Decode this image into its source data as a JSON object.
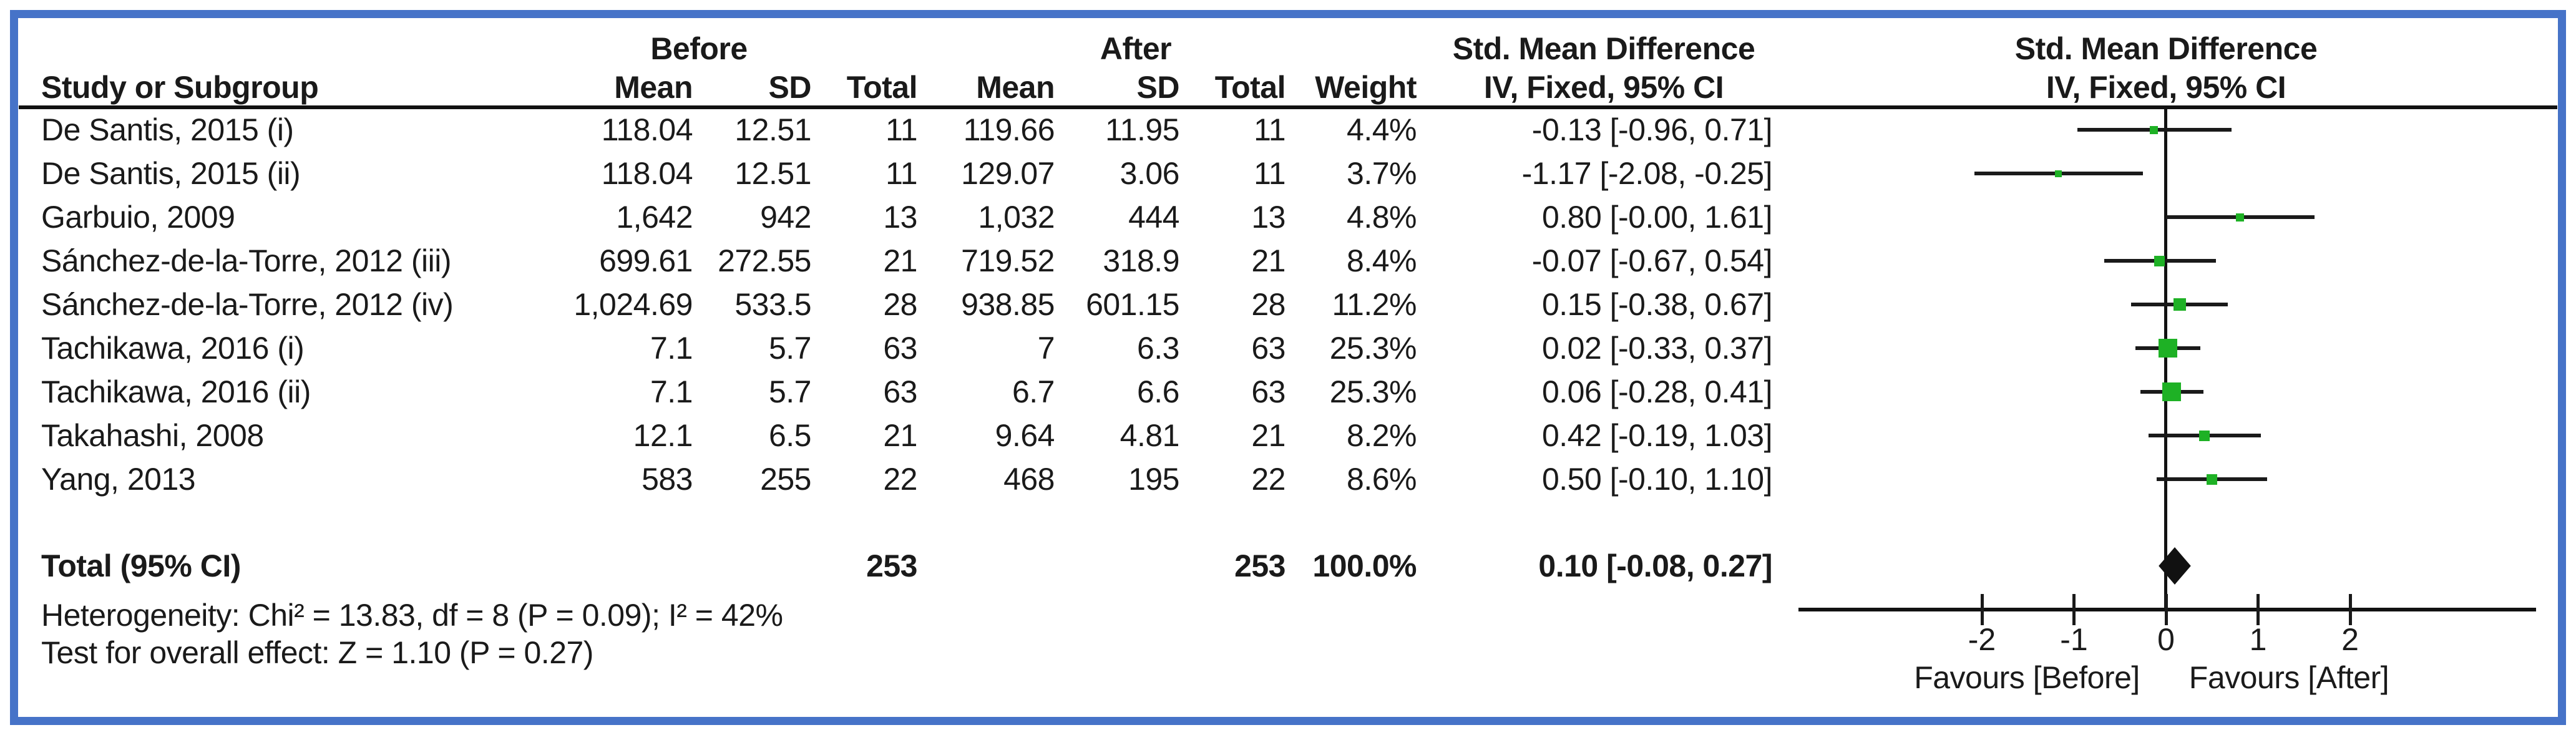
{
  "window": {
    "border_color": "#4673C8",
    "background": "#ffffff"
  },
  "header": {
    "group_before": "Before",
    "group_after": "After",
    "study_col": "Study or Subgroup",
    "col_mean": "Mean",
    "col_sd": "SD",
    "col_total": "Total",
    "col_weight": "Weight",
    "smd_line1": "Std. Mean Difference",
    "smd_line2": "IV, Fixed, 95% CI"
  },
  "chart_data": {
    "type": "forest",
    "effect_measure": "Std. Mean Difference",
    "model": "IV, Fixed, 95% CI",
    "marker_color": "#1EB125",
    "studies": [
      {
        "name": "De Santis, 2015 (i)",
        "mean1": "118.04",
        "sd1": "12.51",
        "n1": "11",
        "mean2": "119.66",
        "sd2": "11.95",
        "n2": "11",
        "weight": "4.4%",
        "weight_value": 4.4,
        "ci_text": "-0.13 [-0.96, 0.71]",
        "est": -0.13,
        "lo": -0.96,
        "hi": 0.71
      },
      {
        "name": "De Santis, 2015 (ii)",
        "mean1": "118.04",
        "sd1": "12.51",
        "n1": "11",
        "mean2": "129.07",
        "sd2": "3.06",
        "n2": "11",
        "weight": "3.7%",
        "weight_value": 3.7,
        "ci_text": "-1.17 [-2.08, -0.25]",
        "est": -1.17,
        "lo": -2.08,
        "hi": -0.25
      },
      {
        "name": "Garbuio, 2009",
        "mean1": "1,642",
        "sd1": "942",
        "n1": "13",
        "mean2": "1,032",
        "sd2": "444",
        "n2": "13",
        "weight": "4.8%",
        "weight_value": 4.8,
        "ci_text": "0.80 [-0.00, 1.61]",
        "est": 0.8,
        "lo": 0.0,
        "hi": 1.61
      },
      {
        "name": "Sánchez-de-la-Torre, 2012 (iii)",
        "mean1": "699.61",
        "sd1": "272.55",
        "n1": "21",
        "mean2": "719.52",
        "sd2": "318.9",
        "n2": "21",
        "weight": "8.4%",
        "weight_value": 8.4,
        "ci_text": "-0.07 [-0.67, 0.54]",
        "est": -0.07,
        "lo": -0.67,
        "hi": 0.54
      },
      {
        "name": "Sánchez-de-la-Torre, 2012 (iv)",
        "mean1": "1,024.69",
        "sd1": "533.5",
        "n1": "28",
        "mean2": "938.85",
        "sd2": "601.15",
        "n2": "28",
        "weight": "11.2%",
        "weight_value": 11.2,
        "ci_text": "0.15 [-0.38, 0.67]",
        "est": 0.15,
        "lo": -0.38,
        "hi": 0.67
      },
      {
        "name": "Tachikawa, 2016 (i)",
        "mean1": "7.1",
        "sd1": "5.7",
        "n1": "63",
        "mean2": "7",
        "sd2": "6.3",
        "n2": "63",
        "weight": "25.3%",
        "weight_value": 25.3,
        "ci_text": "0.02 [-0.33, 0.37]",
        "est": 0.02,
        "lo": -0.33,
        "hi": 0.37
      },
      {
        "name": "Tachikawa, 2016 (ii)",
        "mean1": "7.1",
        "sd1": "5.7",
        "n1": "63",
        "mean2": "6.7",
        "sd2": "6.6",
        "n2": "63",
        "weight": "25.3%",
        "weight_value": 25.3,
        "ci_text": "0.06 [-0.28, 0.41]",
        "est": 0.06,
        "lo": -0.28,
        "hi": 0.41
      },
      {
        "name": "Takahashi, 2008",
        "mean1": "12.1",
        "sd1": "6.5",
        "n1": "21",
        "mean2": "9.64",
        "sd2": "4.81",
        "n2": "21",
        "weight": "8.2%",
        "weight_value": 8.2,
        "ci_text": "0.42 [-0.19, 1.03]",
        "est": 0.42,
        "lo": -0.19,
        "hi": 1.03
      },
      {
        "name": "Yang, 2013",
        "mean1": "583",
        "sd1": "255",
        "n1": "22",
        "mean2": "468",
        "sd2": "195",
        "n2": "22",
        "weight": "8.6%",
        "weight_value": 8.6,
        "ci_text": "0.50 [-0.10, 1.10]",
        "est": 0.5,
        "lo": -0.1,
        "hi": 1.1
      }
    ],
    "total": {
      "label": "Total (95% CI)",
      "n1": "253",
      "n2": "253",
      "weight": "100.0%",
      "ci_text": "0.10 [-0.08, 0.27]",
      "est": 0.1,
      "lo": -0.08,
      "hi": 0.27
    },
    "heterogeneity": "Heterogeneity: Chi² = 13.83, df = 8 (P = 0.09); I² = 42%",
    "overall_effect": "Test for overall effect: Z = 1.10 (P = 0.27)",
    "x_axis": {
      "min": -4,
      "max": 4,
      "ticks": [
        -2,
        -1,
        0,
        1,
        2
      ],
      "favours_left": "Favours [Before]",
      "favours_right": "Favours [After]"
    }
  }
}
